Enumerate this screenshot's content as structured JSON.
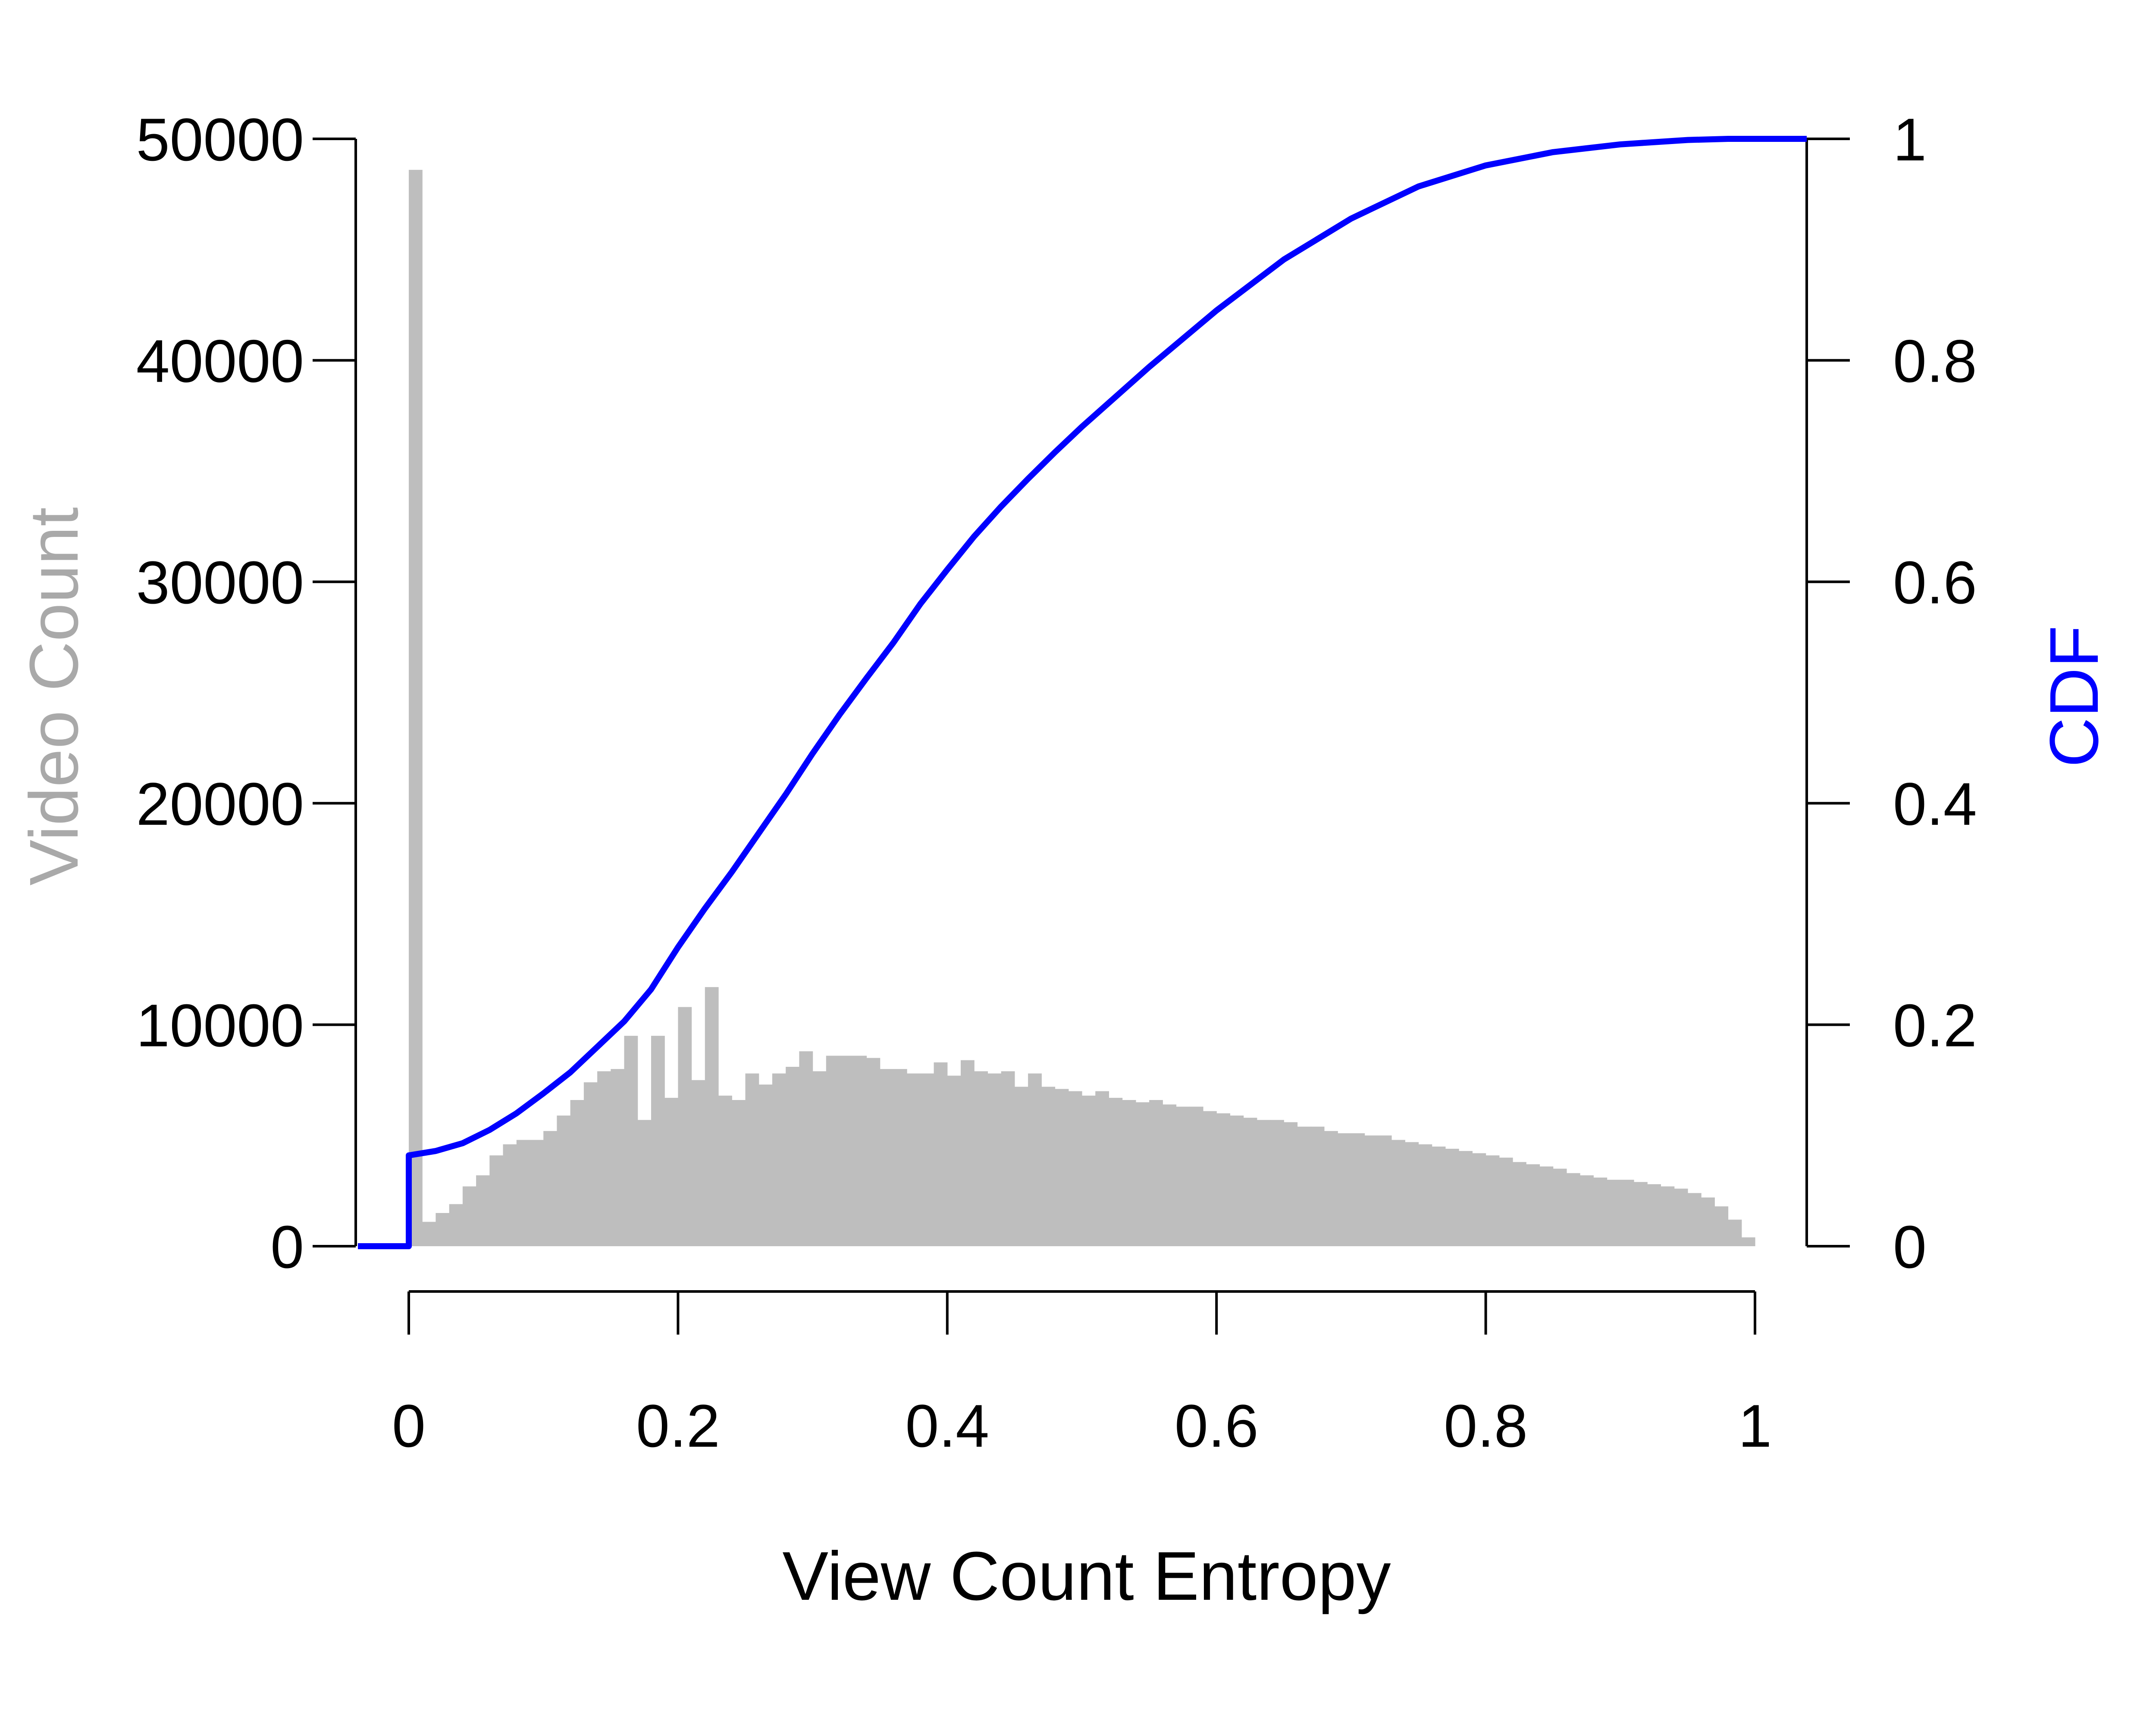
{
  "chart_data": {
    "type": "bar",
    "xlabel": "View Count Entropy",
    "y_left_label": "Video Count",
    "y_right_label": "CDF",
    "xlim": [
      -0.02,
      1.0
    ],
    "ylim_left": [
      0,
      50000
    ],
    "ylim_right": [
      0,
      1
    ],
    "x_ticks": [
      0,
      0.2,
      0.4,
      0.6,
      0.8,
      1
    ],
    "x_tick_labels": [
      "0",
      "0.2",
      "0.4",
      "0.6",
      "0.8",
      "1"
    ],
    "y_left_ticks": [
      0,
      10000,
      20000,
      30000,
      40000,
      50000
    ],
    "y_left_tick_labels": [
      "0",
      "10000",
      "20000",
      "30000",
      "40000",
      "50000"
    ],
    "y_right_ticks": [
      0,
      0.2,
      0.4,
      0.6,
      0.8,
      1
    ],
    "y_right_tick_labels": [
      "0",
      "0.2",
      "0.4",
      "0.6",
      "0.8",
      "1"
    ],
    "grid": false,
    "colors": {
      "histogram": "#bebebe",
      "cdf": "#0000ff",
      "left_label": "#a9a9a9",
      "right_label": "#0000ff",
      "axis": "#000000"
    },
    "histogram": {
      "name": "Video Count",
      "bin_width": 0.01,
      "bin_starts": [
        0.0,
        0.01,
        0.02,
        0.03,
        0.04,
        0.05,
        0.06,
        0.07,
        0.08,
        0.09,
        0.1,
        0.11,
        0.12,
        0.13,
        0.14,
        0.15,
        0.16,
        0.17,
        0.18,
        0.19,
        0.2,
        0.21,
        0.22,
        0.23,
        0.24,
        0.25,
        0.26,
        0.27,
        0.28,
        0.29,
        0.3,
        0.31,
        0.32,
        0.33,
        0.34,
        0.35,
        0.36,
        0.37,
        0.38,
        0.39,
        0.4,
        0.41,
        0.42,
        0.43,
        0.44,
        0.45,
        0.46,
        0.47,
        0.48,
        0.49,
        0.5,
        0.51,
        0.52,
        0.53,
        0.54,
        0.55,
        0.56,
        0.57,
        0.58,
        0.59,
        0.6,
        0.61,
        0.62,
        0.63,
        0.64,
        0.65,
        0.66,
        0.67,
        0.68,
        0.69,
        0.7,
        0.71,
        0.72,
        0.73,
        0.74,
        0.75,
        0.76,
        0.77,
        0.78,
        0.79,
        0.8,
        0.81,
        0.82,
        0.83,
        0.84,
        0.85,
        0.86,
        0.87,
        0.88,
        0.89,
        0.9,
        0.91,
        0.92,
        0.93,
        0.94,
        0.95,
        0.96,
        0.97,
        0.98,
        0.99
      ],
      "values": [
        48600,
        1100,
        1500,
        1900,
        2700,
        3200,
        4100,
        4600,
        4800,
        4800,
        5200,
        5900,
        6600,
        7400,
        7900,
        8000,
        9500,
        5700,
        9500,
        6700,
        10800,
        7500,
        11700,
        6800,
        6600,
        7800,
        7300,
        7800,
        8100,
        8800,
        7900,
        8600,
        8600,
        8600,
        8500,
        8000,
        8000,
        7800,
        7800,
        8300,
        7700,
        8400,
        7900,
        7800,
        7900,
        7200,
        7800,
        7200,
        7100,
        7000,
        6800,
        7000,
        6700,
        6600,
        6500,
        6600,
        6400,
        6300,
        6300,
        6100,
        6000,
        5900,
        5800,
        5700,
        5700,
        5600,
        5400,
        5400,
        5200,
        5100,
        5100,
        5000,
        5000,
        4800,
        4700,
        4600,
        4500,
        4400,
        4300,
        4200,
        4100,
        4000,
        3800,
        3700,
        3600,
        3500,
        3300,
        3200,
        3100,
        3000,
        3000,
        2900,
        2800,
        2700,
        2600,
        2400,
        2200,
        1800,
        1200,
        400
      ]
    },
    "cdf": {
      "name": "CDF",
      "x": [
        -0.02,
        0.0,
        0.0,
        0.02,
        0.04,
        0.06,
        0.08,
        0.1,
        0.12,
        0.14,
        0.16,
        0.18,
        0.2,
        0.22,
        0.24,
        0.26,
        0.28,
        0.3,
        0.32,
        0.34,
        0.36,
        0.38,
        0.4,
        0.42,
        0.44,
        0.46,
        0.48,
        0.5,
        0.55,
        0.6,
        0.65,
        0.7,
        0.75,
        0.8,
        0.85,
        0.9,
        0.95,
        0.98,
        1.0,
        1.03
      ],
      "y": [
        0,
        0,
        0.082,
        0.086,
        0.093,
        0.105,
        0.12,
        0.138,
        0.157,
        0.18,
        0.203,
        0.232,
        0.27,
        0.305,
        0.338,
        0.373,
        0.408,
        0.445,
        0.48,
        0.513,
        0.545,
        0.58,
        0.611,
        0.641,
        0.668,
        0.693,
        0.717,
        0.74,
        0.794,
        0.845,
        0.891,
        0.928,
        0.957,
        0.976,
        0.988,
        0.995,
        0.999,
        1.0,
        1.0,
        1.0
      ]
    }
  }
}
